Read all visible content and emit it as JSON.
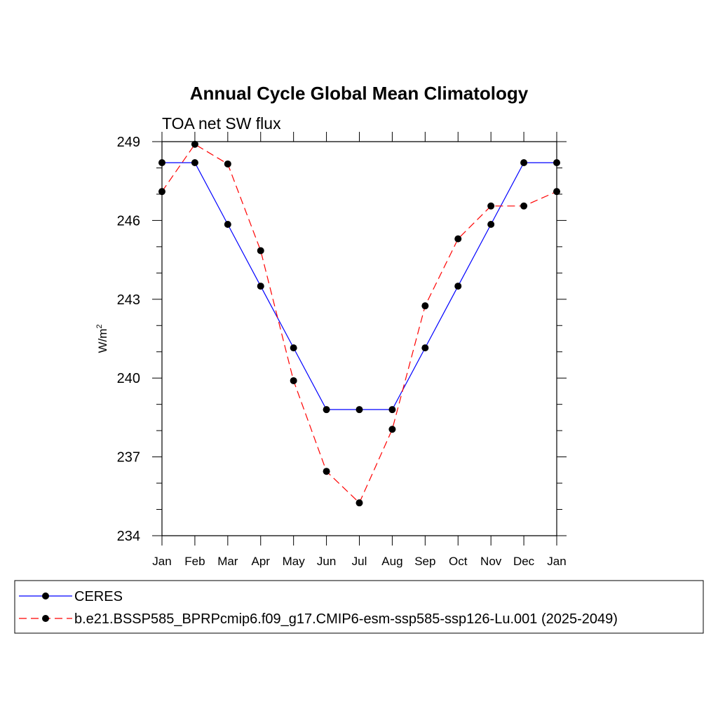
{
  "chart_data": {
    "type": "line",
    "title": "Annual Cycle Global Mean Climatology",
    "subtitle": "TOA net SW flux",
    "ylabel": "W/m",
    "ylabel_superscript": "2",
    "xlabel": "",
    "categories": [
      "Jan",
      "Feb",
      "Mar",
      "Apr",
      "May",
      "Jun",
      "Jul",
      "Aug",
      "Sep",
      "Oct",
      "Nov",
      "Dec",
      "Jan"
    ],
    "ylim": [
      234,
      249
    ],
    "yticks": [
      "234",
      "237",
      "240",
      "243",
      "246",
      "249"
    ],
    "grid": false,
    "legend_position": "bottom",
    "series": [
      {
        "name": "CERES",
        "color": "#0000ff",
        "line_style": "solid",
        "marker": "filled-circle",
        "values": [
          248.2,
          248.2,
          245.85,
          243.5,
          241.15,
          238.8,
          238.8,
          238.8,
          241.15,
          243.5,
          245.85,
          248.2,
          248.2
        ]
      },
      {
        "name": "b.e21.BSSP585_BPRPcmip6.f09_g17.CMIP6-esm-ssp585-ssp126-Lu.001 (2025-2049)",
        "color": "#ff0000",
        "line_style": "dashed",
        "marker": "filled-circle",
        "values": [
          247.1,
          248.9,
          248.15,
          244.85,
          239.9,
          236.45,
          235.25,
          238.05,
          242.75,
          245.3,
          246.55,
          246.55,
          247.1
        ]
      }
    ]
  }
}
